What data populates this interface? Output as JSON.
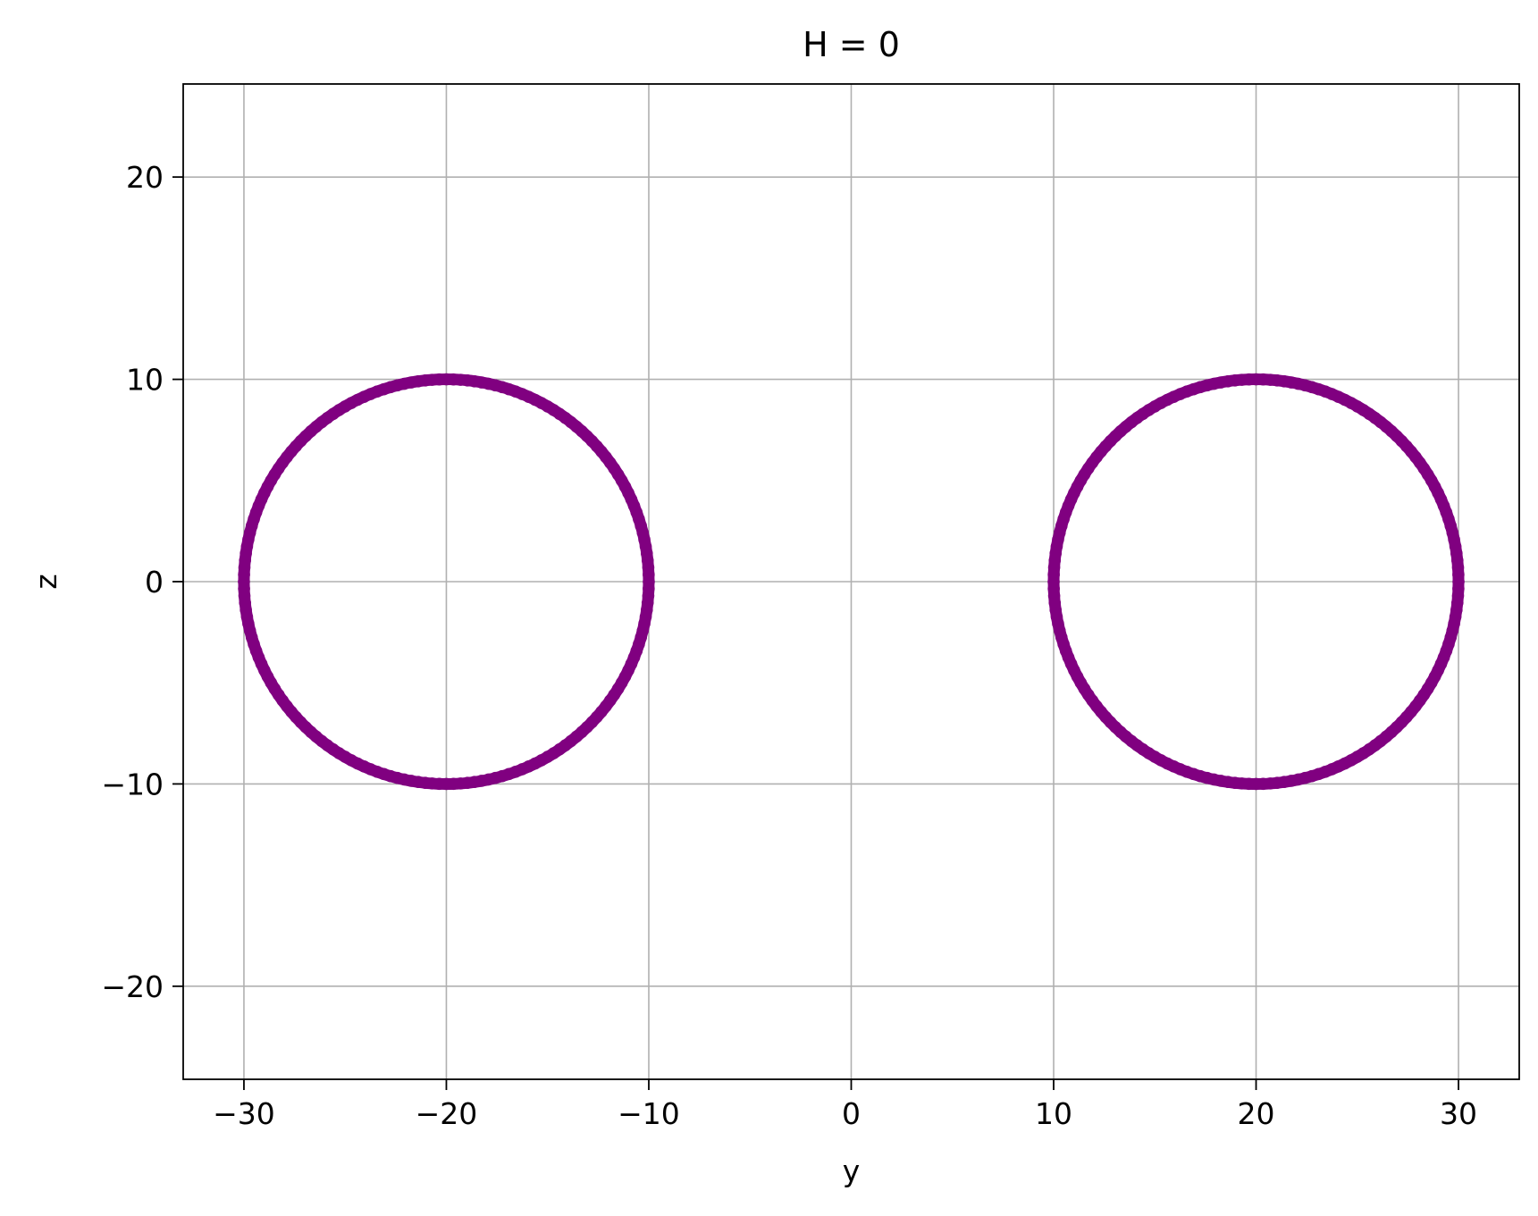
{
  "chart_data": {
    "type": "scatter",
    "title": "H = 0",
    "xlabel": "y",
    "ylabel": "z",
    "xlim": [
      -33,
      33
    ],
    "ylim": [
      -24.6,
      24.6
    ],
    "xticks": [
      -30,
      -20,
      -10,
      0,
      10,
      20,
      30
    ],
    "yticks": [
      -20,
      -10,
      0,
      10,
      20
    ],
    "xtick_labels": [
      "−30",
      "−20",
      "−10",
      "0",
      "10",
      "20",
      "30"
    ],
    "ytick_labels": [
      "−20",
      "−10",
      "0",
      "10",
      "20"
    ],
    "grid": true,
    "legend": false,
    "series": [
      {
        "shape": "circle",
        "center": [
          -20,
          0
        ],
        "radius": 10,
        "color": "#800080"
      },
      {
        "shape": "circle",
        "center": [
          20,
          0
        ],
        "radius": 10,
        "color": "#800080"
      }
    ]
  },
  "colors": {
    "series": "#800080",
    "grid": "#b0b0b0",
    "axes": "#000000"
  }
}
